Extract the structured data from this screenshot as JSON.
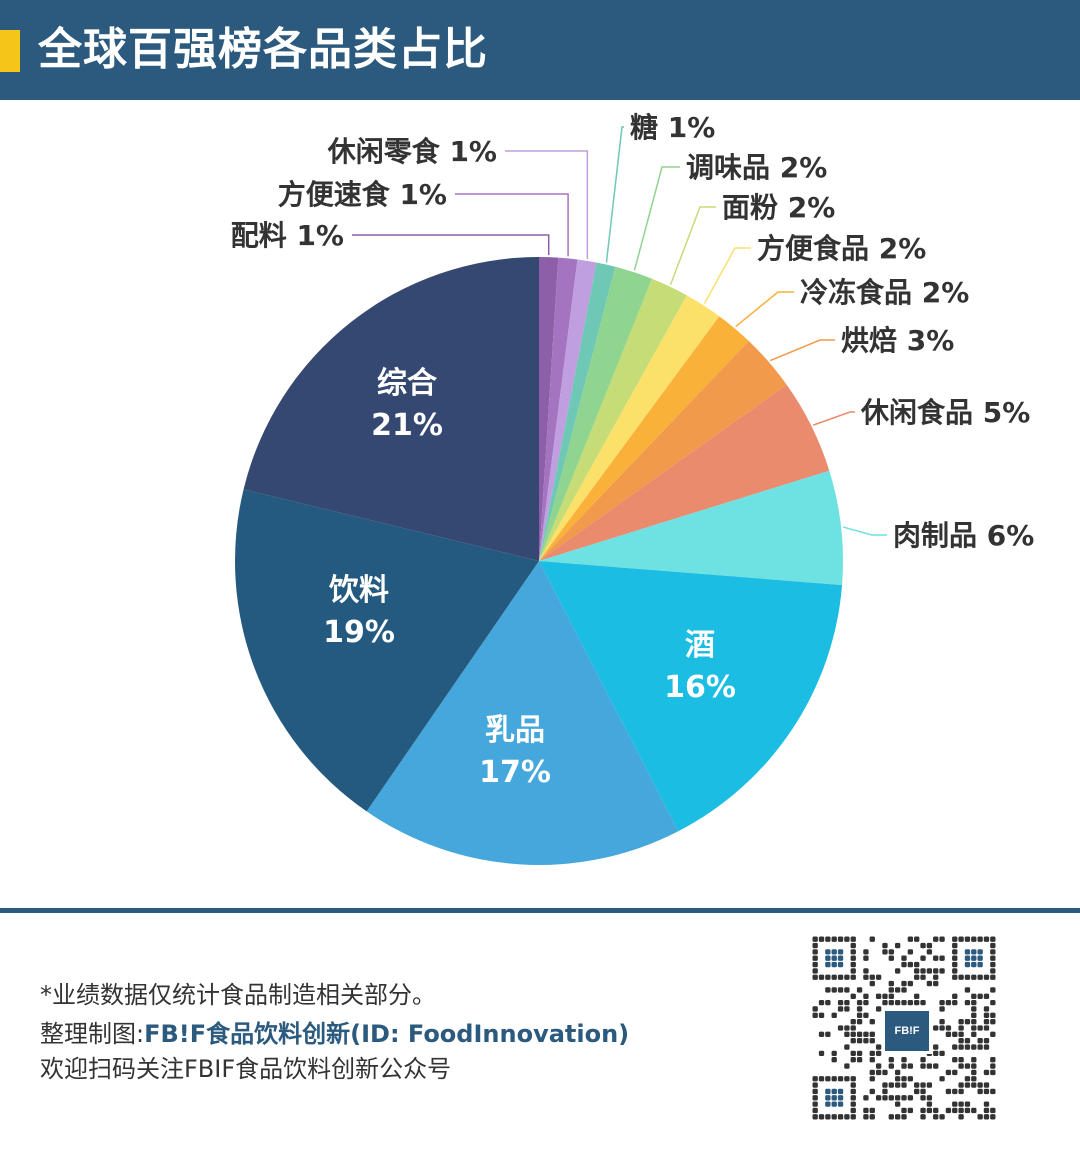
{
  "header": {
    "title": "全球百强榜各品类占比"
  },
  "chart_data": {
    "type": "pie",
    "title": "全球百强榜各品类占比",
    "start": "12 o'clock, clockwise",
    "slices": [
      {
        "label": "配料",
        "value": 1,
        "display": "1%",
        "color": "#8c5fa8",
        "label_inside": false
      },
      {
        "label": "方便速食",
        "value": 1,
        "display": "1%",
        "color": "#a574c1",
        "label_inside": false
      },
      {
        "label": "休闲零食",
        "value": 1,
        "display": "1%",
        "color": "#bf9fe0",
        "label_inside": false
      },
      {
        "label": "糖",
        "value": 1,
        "display": "1%",
        "color": "#6fc7b5",
        "label_inside": false
      },
      {
        "label": "调味品",
        "value": 2,
        "display": "2%",
        "color": "#8fd48f",
        "label_inside": false
      },
      {
        "label": "面粉",
        "value": 2,
        "display": "2%",
        "color": "#c5dc77",
        "label_inside": false
      },
      {
        "label": "方便食品",
        "value": 2,
        "display": "2%",
        "color": "#fbe06a",
        "label_inside": false
      },
      {
        "label": "冷冻食品",
        "value": 2,
        "display": "2%",
        "color": "#f9b13a",
        "label_inside": false
      },
      {
        "label": "烘焙",
        "value": 3,
        "display": "3%",
        "color": "#f29a4c",
        "label_inside": false
      },
      {
        "label": "休闲食品",
        "value": 5,
        "display": "5%",
        "color": "#e98b6c",
        "label_inside": false
      },
      {
        "label": "肉制品",
        "value": 6,
        "display": "6%",
        "color": "#6ee1e2",
        "label_inside": false
      },
      {
        "label": "酒",
        "value": 16,
        "display": "16%",
        "color": "#1bbde3",
        "label_inside": true
      },
      {
        "label": "乳品",
        "value": 17,
        "display": "17%",
        "color": "#45a7dc",
        "label_inside": true
      },
      {
        "label": "饮料",
        "value": 19,
        "display": "19%",
        "color": "#245a80",
        "label_inside": true
      },
      {
        "label": "综合",
        "value": 21,
        "display": "21%",
        "color": "#344872",
        "label_inside": true
      }
    ]
  },
  "footer": {
    "note": "*业绩数据仅统计食品制造相关部分。",
    "credit_prefix": "整理制图:",
    "credit_brand": "FB!F",
    "credit_name": "食品饮料创新",
    "credit_id": "(ID: FoodInnovation)",
    "follow": "欢迎扫码关注FBIF食品饮料创新公众号",
    "qr_logo": "FB!F"
  },
  "colors": {
    "header_bg": "#2b5a7e",
    "accent": "#f5c518"
  }
}
